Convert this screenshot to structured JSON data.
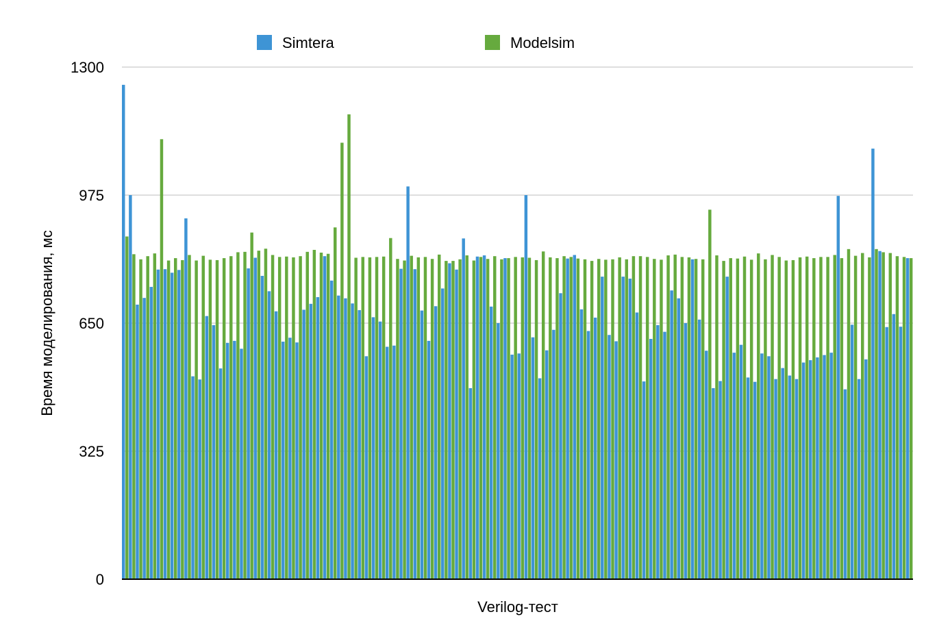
{
  "chart_data": {
    "type": "bar",
    "title": "",
    "xlabel": "Verilog-тест",
    "ylabel": "Время моделирования, мс",
    "ylim": [
      0,
      1300
    ],
    "yticks": [
      0,
      325,
      650,
      975,
      1300
    ],
    "grid": true,
    "legend_position": "top",
    "series": [
      {
        "name": "Simtera",
        "color": "#3E94D5",
        "values": [
          1255,
          975,
          697,
          714,
          742,
          786,
          787,
          778,
          785,
          916,
          515,
          507,
          668,
          645,
          535,
          600,
          605,
          585,
          789,
          816,
          770,
          731,
          680,
          603,
          613,
          601,
          684,
          699,
          716,
          820,
          758,
          720,
          713,
          700,
          683,
          566,
          665,
          654,
          590,
          593,
          788,
          997,
          787,
          682,
          605,
          693,
          738,
          802,
          786,
          865,
          485,
          819,
          822,
          692,
          650,
          815,
          570,
          573,
          975,
          614,
          510,
          581,
          633,
          726,
          814,
          823,
          685,
          630,
          664,
          768,
          620,
          604,
          768,
          763,
          677,
          502,
          610,
          645,
          628,
          733,
          713,
          650,
          812,
          659,
          580,
          485,
          503,
          768,
          575,
          595,
          512,
          501,
          573,
          566,
          508,
          536,
          517,
          508,
          550,
          556,
          563,
          569,
          575,
          973,
          482,
          646,
          508,
          558,
          1093,
          833,
          640,
          673,
          641,
          815
        ],
        "values_from": 0
      },
      {
        "name": "Modelsim",
        "color": "#66AA3E",
        "values": [
          870,
          825,
          812,
          820,
          827,
          1117,
          809,
          815,
          810,
          823,
          809,
          821,
          811,
          810,
          815,
          820,
          830,
          831,
          880,
          834,
          839,
          823,
          818,
          819,
          817,
          820,
          831,
          836,
          829,
          826,
          893,
          1108,
          1180,
          816,
          818,
          817,
          818,
          819,
          866,
          813,
          809,
          821,
          817,
          818,
          813,
          824,
          808,
          808,
          812,
          822,
          809,
          818,
          813,
          820,
          812,
          815,
          818,
          817,
          816,
          810,
          832,
          817,
          815,
          820,
          818,
          814,
          812,
          808,
          813,
          811,
          812,
          817,
          812,
          820,
          820,
          818,
          813,
          811,
          822,
          824,
          818,
          817,
          813,
          812,
          938,
          822,
          808,
          815,
          814,
          819,
          811,
          827,
          812,
          823,
          818,
          809,
          810,
          817,
          819,
          815,
          818,
          818,
          823,
          815,
          838,
          821,
          828,
          817,
          838,
          830,
          828,
          820,
          818,
          815
        ]
      }
    ]
  }
}
